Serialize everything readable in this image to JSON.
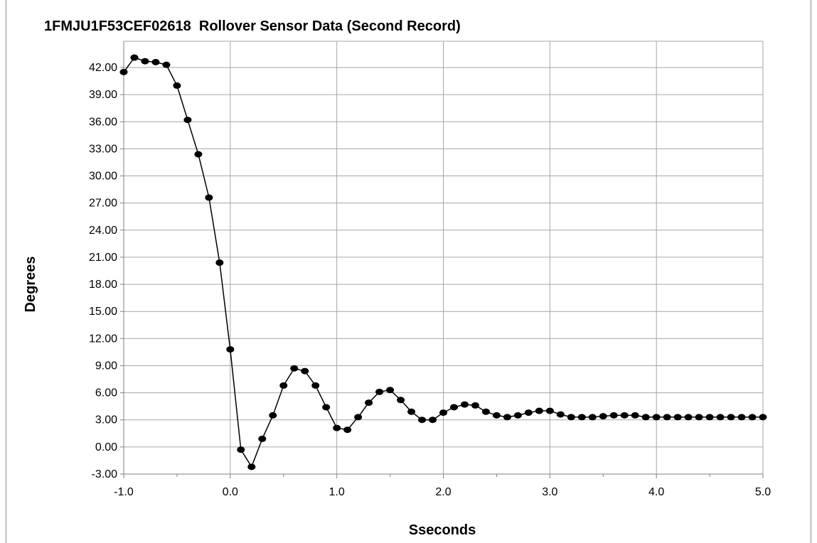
{
  "chart_data": {
    "type": "scatter",
    "title": "1FMJU1F53CEF02618  Rollover Sensor Data (Second Record)",
    "xlabel": "Sseconds",
    "ylabel": "Degrees",
    "xlim": [
      -1.0,
      5.0
    ],
    "ylim": [
      -3.0,
      43.5
    ],
    "x_ticks": [
      "-1.0",
      "0.0",
      "1.0",
      "2.0",
      "3.0",
      "4.0",
      "5.0"
    ],
    "x_tick_values": [
      -1,
      0,
      1,
      2,
      3,
      4,
      5
    ],
    "y_ticks": [
      "-3.00",
      "0.00",
      "3.00",
      "6.00",
      "9.00",
      "12.00",
      "15.00",
      "18.00",
      "21.00",
      "24.00",
      "27.00",
      "30.00",
      "33.00",
      "36.00",
      "39.00",
      "42.00"
    ],
    "y_tick_values": [
      -3,
      0,
      3,
      6,
      9,
      12,
      15,
      18,
      21,
      24,
      27,
      30,
      33,
      36,
      39,
      42
    ],
    "grid": true,
    "legend": "none",
    "marker": "circle",
    "line": "straight",
    "series": [
      {
        "x": [
          -1.0,
          -0.9,
          -0.8,
          -0.7,
          -0.6,
          -0.5,
          -0.4,
          -0.3,
          -0.2,
          -0.1,
          0.0,
          0.1,
          0.2,
          0.3,
          0.4,
          0.5,
          0.6,
          0.7,
          0.8,
          0.9,
          1.0,
          1.1,
          1.2,
          1.3,
          1.4,
          1.5,
          1.6,
          1.7,
          1.8,
          1.9,
          2.0,
          2.1,
          2.2,
          2.3,
          2.4,
          2.5,
          2.6,
          2.7,
          2.8,
          2.9,
          3.0,
          3.1,
          3.2,
          3.3,
          3.4,
          3.5,
          3.6,
          3.7,
          3.8,
          3.9,
          4.0,
          4.1,
          4.2,
          4.3,
          4.4,
          4.5,
          4.6,
          4.7,
          4.8,
          4.9,
          5.0
        ],
        "y": [
          41.5,
          43.1,
          42.7,
          42.6,
          42.3,
          40.0,
          36.2,
          32.4,
          27.6,
          20.4,
          10.8,
          -0.3,
          -2.2,
          0.9,
          3.5,
          6.8,
          8.7,
          8.4,
          6.8,
          4.4,
          2.1,
          1.9,
          3.3,
          4.9,
          6.1,
          6.3,
          5.2,
          3.9,
          3.0,
          3.0,
          3.8,
          4.4,
          4.7,
          4.6,
          3.9,
          3.5,
          3.3,
          3.5,
          3.8,
          4.0,
          4.0,
          3.6,
          3.3,
          3.3,
          3.3,
          3.4,
          3.5,
          3.5,
          3.5,
          3.3,
          3.3,
          3.3,
          3.3,
          3.3,
          3.3,
          3.3,
          3.3,
          3.3,
          3.3,
          3.3,
          3.3
        ]
      }
    ]
  }
}
